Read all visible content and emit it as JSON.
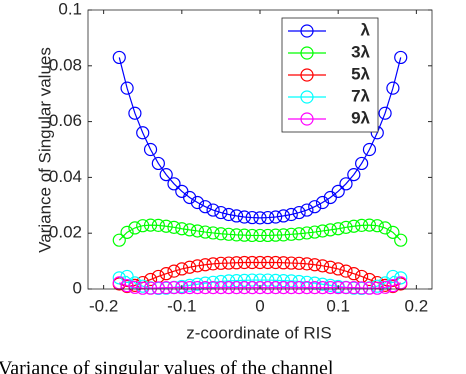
{
  "chart_data": {
    "type": "line",
    "xlabel": "z-coordinate of RIS",
    "ylabel": "Variance of Singular values",
    "caption": "Variance of singular values of the channel",
    "x": [
      -0.18,
      -0.17,
      -0.16,
      -0.15,
      -0.14,
      -0.13,
      -0.12,
      -0.11,
      -0.1,
      -0.09,
      -0.08,
      -0.07,
      -0.06,
      -0.05,
      -0.04,
      -0.03,
      -0.02,
      -0.01,
      0,
      0.01,
      0.02,
      0.03,
      0.04,
      0.05,
      0.06,
      0.07,
      0.08,
      0.09,
      0.1,
      0.11,
      0.12,
      0.13,
      0.14,
      0.15,
      0.16,
      0.17,
      0.18
    ],
    "series": [
      {
        "name": "λ",
        "color": "#0000ff",
        "values": [
          0.083,
          0.072,
          0.063,
          0.056,
          0.05,
          0.045,
          0.041,
          0.0377,
          0.035,
          0.0328,
          0.031,
          0.0295,
          0.0283,
          0.0274,
          0.0267,
          0.0262,
          0.0258,
          0.0256,
          0.0255,
          0.0256,
          0.0258,
          0.0262,
          0.0267,
          0.0274,
          0.0283,
          0.0295,
          0.031,
          0.0328,
          0.035,
          0.0377,
          0.041,
          0.045,
          0.05,
          0.056,
          0.063,
          0.072,
          0.083
        ]
      },
      {
        "name": "3λ",
        "color": "#00ff00",
        "values": [
          0.0175,
          0.0203,
          0.0219,
          0.0227,
          0.0229,
          0.0228,
          0.0225,
          0.0221,
          0.0216,
          0.0212,
          0.0208,
          0.0204,
          0.0201,
          0.0198,
          0.0196,
          0.0194,
          0.0193,
          0.0192,
          0.0192,
          0.0192,
          0.0193,
          0.0194,
          0.0196,
          0.0198,
          0.0201,
          0.0204,
          0.0208,
          0.0212,
          0.0216,
          0.0221,
          0.0225,
          0.0228,
          0.0229,
          0.0227,
          0.0219,
          0.0203,
          0.0175
        ]
      },
      {
        "name": "5λ",
        "color": "#ff0000",
        "values": [
          0.0018,
          0.0009,
          0.0013,
          0.0023,
          0.0034,
          0.0045,
          0.0055,
          0.0064,
          0.0072,
          0.0078,
          0.0083,
          0.0087,
          0.009,
          0.0092,
          0.0093,
          0.0094,
          0.0095,
          0.0095,
          0.0095,
          0.0095,
          0.0095,
          0.0094,
          0.0093,
          0.0092,
          0.009,
          0.0087,
          0.0083,
          0.0078,
          0.0072,
          0.0064,
          0.0055,
          0.0045,
          0.0034,
          0.0023,
          0.0013,
          0.0009,
          0.0018
        ]
      },
      {
        "name": "7λ",
        "color": "#00ffff",
        "values": [
          0.004,
          0.0045,
          0.0022,
          0.001,
          0.0004,
          0.0002,
          0.0003,
          0.0006,
          0.0009,
          0.0013,
          0.0017,
          0.0021,
          0.0024,
          0.0027,
          0.0029,
          0.003,
          0.0031,
          0.0032,
          0.0032,
          0.0032,
          0.0031,
          0.003,
          0.0029,
          0.0027,
          0.0024,
          0.0021,
          0.0017,
          0.0013,
          0.0009,
          0.0006,
          0.0003,
          0.0002,
          0.0004,
          0.001,
          0.0022,
          0.0045,
          0.004
        ]
      },
      {
        "name": "9λ",
        "color": "#ff00ff",
        "values": [
          0.0022,
          0.0012,
          0.0006,
          0.0003,
          0.0003,
          0.0004,
          0.0005,
          0.0005,
          0.0005,
          0.0005,
          0.0005,
          0.0005,
          0.0005,
          0.0005,
          0.0005,
          0.0005,
          0.0005,
          0.0005,
          0.0005,
          0.0005,
          0.0005,
          0.0005,
          0.0005,
          0.0005,
          0.0005,
          0.0005,
          0.0005,
          0.0005,
          0.0005,
          0.0005,
          0.0005,
          0.0004,
          0.0003,
          0.0003,
          0.0006,
          0.0012,
          0.0022
        ]
      }
    ],
    "xlim": [
      -0.22,
      0.22
    ],
    "xticks": [
      -0.2,
      -0.1,
      0,
      0.1,
      0.2
    ],
    "ylim": [
      0,
      0.1
    ],
    "yticks": [
      0,
      0.02,
      0.04,
      0.06,
      0.08,
      0.1
    ],
    "legend": "top-right",
    "box": true
  }
}
